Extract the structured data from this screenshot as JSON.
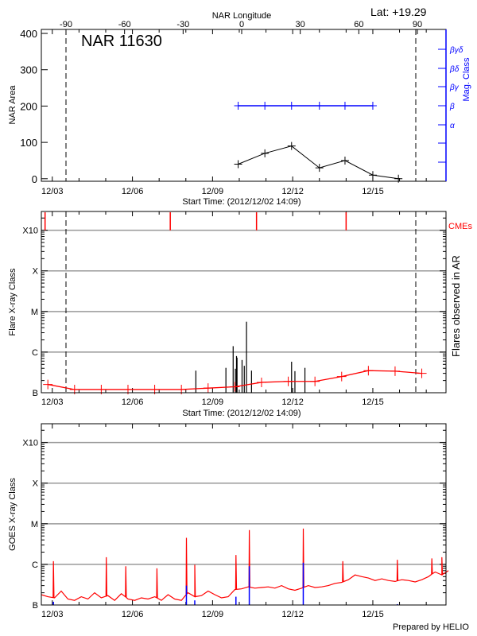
{
  "colors": {
    "area": "#000000",
    "mag_class": "#0000ff",
    "flare_bg": "#ff0000",
    "cme": "#ff0000",
    "goes_long": "#ff0000",
    "goes_flare_marks": "#0000ff",
    "grid": "#999999"
  },
  "footer": "Prepared by HELIO",
  "chart_data": [
    {
      "type": "line",
      "title": "NAR 11630",
      "lat_label": "Lat: +19.29",
      "top_axis_label": "NAR Longitude",
      "top_ticks": [
        "-90",
        "-60",
        "-30",
        "0",
        "30",
        "60",
        "90"
      ],
      "top_tick_values": [
        -90,
        -60,
        -30,
        0,
        30,
        60,
        90
      ],
      "xlabel": "Start Time: (2012/12/02 14:09)",
      "x_ticks": [
        "12/03",
        "12/06",
        "12/09",
        "12/12",
        "12/15"
      ],
      "x_tick_dates": [
        "2012-12-03T00:00",
        "2012-12-06T00:00",
        "2012-12-09T00:00",
        "2012-12-12T00:00",
        "2012-12-15T00:00"
      ],
      "xlim": [
        "2012-12-02T14:09",
        "2012-12-17T17:45"
      ],
      "ylabel": "NAR Area",
      "ylim": [
        -7,
        411
      ],
      "y_ticks": [
        "0",
        "100",
        "200",
        "300",
        "400"
      ],
      "y_tick_values": [
        0,
        100,
        200,
        300,
        400
      ],
      "y2label": "Mag. Class",
      "y2_ticks": [
        "α",
        "β",
        "βγ",
        "βδ",
        "βγδ"
      ],
      "dashed_longitudes": [
        -90,
        90
      ],
      "series": [
        {
          "name": "NAR Area",
          "dates": [
            "2012-12-09T23:00",
            "2012-12-10T23:00",
            "2012-12-11T23:00",
            "2012-12-13T00:00",
            "2012-12-13T23:00",
            "2012-12-15T00:00",
            "2012-12-15T23:00"
          ],
          "values": [
            40,
            70,
            90,
            30,
            50,
            10,
            0
          ]
        },
        {
          "name": "Mag. Class",
          "dates": [
            "2012-12-09T23:00",
            "2012-12-10T23:00",
            "2012-12-11T23:00",
            "2012-12-13T00:00",
            "2012-12-13T23:00",
            "2012-12-15T00:00"
          ],
          "values": [
            "β",
            "β",
            "β",
            "β",
            "β",
            "β"
          ]
        }
      ]
    },
    {
      "type": "bar",
      "ylabel": "Flare X-ray Class",
      "y2label": "Flares observed in AR",
      "cme_label": "CMEs",
      "xlabel": "Start Time: (2012/12/02 14:09)",
      "x_ticks": [
        "12/03",
        "12/06",
        "12/09",
        "12/12",
        "12/15"
      ],
      "y_scale": "log",
      "ylim": [
        1e-07,
        0.0029
      ],
      "y_ticks": [
        "B",
        "C",
        "M",
        "X",
        "X10"
      ],
      "y_tick_values": [
        1e-07,
        1e-06,
        1e-05,
        0.0001,
        0.001
      ],
      "grid": true,
      "flares": [
        {
          "date": "2012-12-08T09:00",
          "class": "B3.5"
        },
        {
          "date": "2012-12-09T12:00",
          "class": "B4.1"
        },
        {
          "date": "2012-12-09T18:30",
          "class": "C1.4"
        },
        {
          "date": "2012-12-09T20:30",
          "class": "B3.9"
        },
        {
          "date": "2012-12-09T21:30",
          "class": "B8.0"
        },
        {
          "date": "2012-12-09T22:00",
          "class": "B7.3"
        },
        {
          "date": "2012-12-10T02:30",
          "class": "B6.4"
        },
        {
          "date": "2012-12-10T04:30",
          "class": "B4.6"
        },
        {
          "date": "2012-12-10T06:30",
          "class": "C5.6"
        },
        {
          "date": "2012-12-10T11:00",
          "class": "B3.5"
        },
        {
          "date": "2012-12-11T23:00",
          "class": "B5.8"
        },
        {
          "date": "2012-12-12T02:00",
          "class": "B3.4"
        },
        {
          "date": "2012-12-12T11:00",
          "class": "B4.1"
        }
      ],
      "background": {
        "dates": [
          "2012-12-02T20:00",
          "2012-12-03T20:00",
          "2012-12-04T20:00",
          "2012-12-05T20:00",
          "2012-12-06T20:00",
          "2012-12-07T20:00",
          "2012-12-08T20:00",
          "2012-12-09T20:00",
          "2012-12-10T20:00",
          "2012-12-11T20:00",
          "2012-12-12T20:00",
          "2012-12-13T20:00",
          "2012-12-14T20:00",
          "2012-12-15T20:00",
          "2012-12-16T20:00"
        ],
        "classes": [
          "B1.6",
          "B1.2",
          "B1.2",
          "B1.2",
          "B1.2",
          "B1.2",
          "B1.3",
          "B1.4",
          "B1.8",
          "B1.9",
          "B1.9",
          "B2.5",
          "B3.5",
          "B3.4",
          "B3.0"
        ]
      },
      "cmes": [
        "2012-12-02T17:30",
        "2012-12-07T10:00",
        "2012-12-10T15:30",
        "2012-12-14T00:00"
      ]
    },
    {
      "type": "line",
      "ylabel": "GOES X-ray Class",
      "x_ticks": [
        "12/03",
        "12/06",
        "12/09",
        "12/12",
        "12/15"
      ],
      "y_scale": "log",
      "ylim": [
        1e-07,
        0.0029
      ],
      "y_ticks": [
        "B",
        "C",
        "M",
        "X",
        "X10"
      ],
      "y_tick_values": [
        1e-07,
        1e-06,
        1e-05,
        0.0001,
        0.001
      ],
      "grid": true,
      "series": [
        {
          "start": "2012-12-02T14:00",
          "step_hours": 6,
          "unit": "1e-7 W/m^2",
          "values": [
            1.8,
            1.6,
            1.5,
            2.2,
            1.4,
            1.3,
            1.6,
            1.4,
            2.0,
            1.5,
            1.7,
            1.3,
            1.9,
            1.4,
            1.3,
            1.5,
            1.4,
            1.6,
            1.3,
            1.8,
            1.4,
            1.3,
            2.0,
            1.6,
            1.7,
            2.2,
            1.8,
            1.5,
            1.6,
            2.4,
            2.5,
            2.8,
            2.6,
            2.7,
            2.8,
            2.6,
            3.0,
            2.5,
            2.3,
            2.6,
            3.0,
            2.7,
            2.8,
            3.0,
            3.4,
            3.6,
            4.2,
            5.5,
            5.0,
            4.6,
            4.0,
            4.4,
            4.0,
            3.8,
            4.2,
            4.0,
            3.7,
            4.2,
            5.0,
            6.5,
            5.5,
            7.0
          ]
        }
      ],
      "peaks": [
        {
          "date": "2012-12-03T01:00",
          "class": "C1.2"
        },
        {
          "date": "2012-12-05T00:30",
          "class": "C1.5"
        },
        {
          "date": "2012-12-05T18:00",
          "class": "B9.0"
        },
        {
          "date": "2012-12-06T22:00",
          "class": "B8.0"
        },
        {
          "date": "2012-12-08T00:30",
          "class": "C4.5"
        },
        {
          "date": "2012-12-08T08:00",
          "class": "B9.8"
        },
        {
          "date": "2012-12-09T21:00",
          "class": "C1.7"
        },
        {
          "date": "2012-12-10T09:00",
          "class": "C7.0"
        },
        {
          "date": "2012-12-12T09:30",
          "class": "C7.6"
        },
        {
          "date": "2012-12-13T21:00",
          "class": "C1.2"
        },
        {
          "date": "2012-12-15T22:00",
          "class": "C1.3"
        },
        {
          "date": "2012-12-17T05:00",
          "class": "C1.4"
        },
        {
          "date": "2012-12-17T14:00",
          "class": "C1.5"
        }
      ],
      "flare_marks": [
        {
          "date": "2012-12-03T01:00",
          "class": "B1.2"
        },
        {
          "date": "2012-12-08T00:30",
          "class": "B3.0"
        },
        {
          "date": "2012-12-08T08:00",
          "class": "B1.3"
        },
        {
          "date": "2012-12-09T21:00",
          "class": "B1.6"
        },
        {
          "date": "2012-12-10T09:00",
          "class": "B9.0"
        },
        {
          "date": "2012-12-12T09:30",
          "class": "C1.1"
        },
        {
          "date": "2012-12-15T22:00",
          "class": "B1.05"
        }
      ]
    }
  ]
}
